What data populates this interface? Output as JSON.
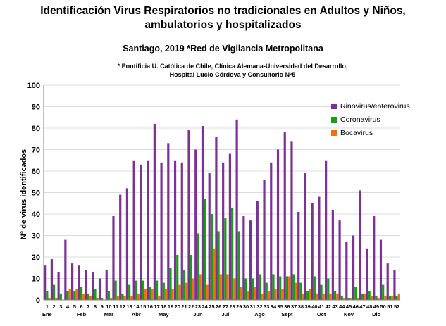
{
  "chart_data": {
    "type": "bar",
    "title_line1": "Identificación Virus Respiratorios no tradicionales en Adultos y Niños,",
    "title_line2": "ambulatorios y hospitalizados",
    "subtitle": "Santiago, 2019 *Red de Vigilancia Metropolitana",
    "source_line1": "* Pontificia U. Católica de Chile, Clínica Alemana-Universidad del Desarrollo,",
    "source_line2": "Hospital Lucio Córdova y Consultorio Nº5",
    "ylabel": "N° de virus identificados",
    "ylim": [
      0,
      100
    ],
    "yticks": [
      0,
      10,
      20,
      30,
      40,
      50,
      60,
      70,
      80,
      90,
      100
    ],
    "categories": [
      "1",
      "2",
      "3",
      "4",
      "5",
      "6",
      "7",
      "8",
      "9",
      "10",
      "11",
      "12",
      "13",
      "14",
      "15",
      "16",
      "17",
      "18",
      "19",
      "20",
      "21",
      "22",
      "23",
      "24",
      "25",
      "26",
      "27",
      "28",
      "29",
      "30",
      "31",
      "32",
      "33",
      "34",
      "35",
      "36",
      "37",
      "38",
      "39",
      "40",
      "41",
      "42",
      "43",
      "44",
      "45",
      "46",
      "47",
      "48",
      "49",
      "50",
      "51",
      "52"
    ],
    "months": [
      {
        "label": "Ene",
        "week": 1
      },
      {
        "label": "Feb",
        "week": 6
      },
      {
        "label": "Mar",
        "week": 10
      },
      {
        "label": "Abr",
        "week": 14
      },
      {
        "label": "May",
        "week": 18
      },
      {
        "label": "Jun",
        "week": 23
      },
      {
        "label": "Jul",
        "week": 27
      },
      {
        "label": "Ago",
        "week": 32
      },
      {
        "label": "Sept",
        "week": 36
      },
      {
        "label": "Oct",
        "week": 41
      },
      {
        "label": "Nov",
        "week": 45
      },
      {
        "label": "Dic",
        "week": 49
      }
    ],
    "series": [
      {
        "name": "Rinovirus/enterovirus",
        "color": "#7b3294",
        "values": [
          16,
          19,
          13,
          28,
          17,
          16,
          14,
          13,
          10,
          14,
          39,
          49,
          52,
          65,
          63,
          65,
          82,
          64,
          73,
          65,
          64,
          79,
          70,
          81,
          59,
          76,
          64,
          68,
          84,
          39,
          37,
          46,
          56,
          64,
          70,
          78,
          74,
          41,
          59,
          45,
          48,
          65,
          42,
          37,
          27,
          30,
          51,
          24,
          39,
          28,
          17,
          14
        ]
      },
      {
        "name": "Coronavirus",
        "color": "#1a9e1a",
        "values": [
          4,
          7,
          3,
          4,
          4,
          6,
          3,
          5,
          1,
          4,
          9,
          3,
          7,
          9,
          9,
          6,
          9,
          8,
          15,
          21,
          14,
          21,
          31,
          47,
          40,
          32,
          38,
          43,
          32,
          10,
          10,
          12,
          8,
          12,
          11,
          11,
          12,
          8,
          4,
          11,
          7,
          10,
          4,
          2,
          1,
          6,
          3,
          4,
          2,
          7,
          2,
          2
        ]
      },
      {
        "name": "Bocavirus",
        "color": "#f07010",
        "values": [
          1,
          1,
          0,
          5,
          5,
          3,
          2,
          1,
          0,
          1,
          2,
          2,
          2,
          3,
          5,
          5,
          2,
          5,
          5,
          7,
          8,
          10,
          12,
          7,
          24,
          12,
          12,
          10,
          6,
          4,
          6,
          3,
          4,
          5,
          5,
          11,
          8,
          3,
          5,
          3,
          3,
          3,
          3,
          1,
          1,
          1,
          3,
          2,
          1,
          2,
          2,
          3
        ]
      }
    ],
    "legend_position": "right"
  }
}
